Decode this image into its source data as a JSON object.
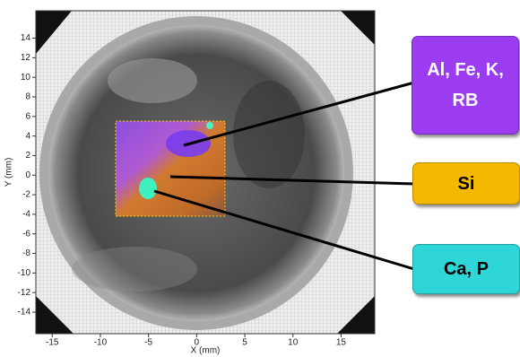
{
  "plot": {
    "x_label": "X (mm)",
    "y_label": "Y (mm)",
    "xlim": [
      -16.7,
      18.5
    ],
    "ylim": [
      -16.2,
      16.8
    ],
    "xticks": [
      -15,
      -10,
      -5,
      0,
      5,
      10,
      15
    ],
    "yticks": [
      14,
      12,
      10,
      8,
      6,
      4,
      2,
      0,
      -2,
      -4,
      -6,
      -8,
      -10,
      -12,
      -14
    ]
  },
  "callouts": [
    {
      "label": "Al, Fe, K, RB"
    },
    {
      "label": "Si"
    },
    {
      "label": "Ca, P"
    }
  ]
}
